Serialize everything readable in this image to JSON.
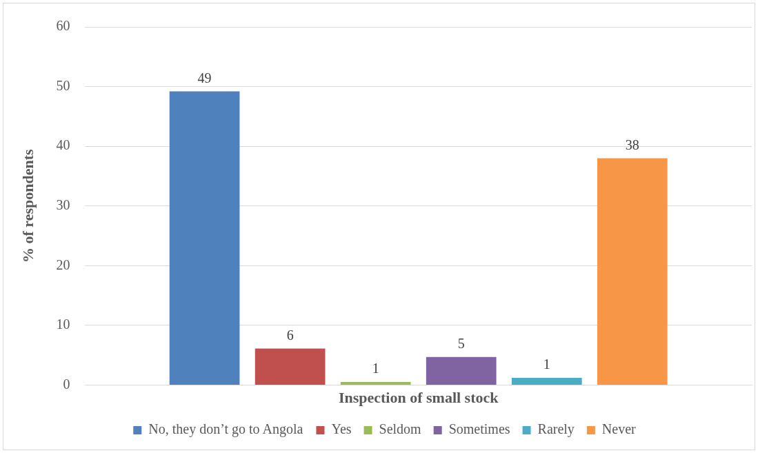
{
  "chart_data": {
    "type": "bar",
    "xlabel": "Inspection of small stock",
    "ylabel": "% of respondents",
    "categories": [
      null
    ],
    "series": [
      {
        "name": "No, they don’t go to Angola",
        "color": "#4f81bd",
        "values": [
          49.2
        ],
        "value_labels": [
          "49"
        ]
      },
      {
        "name": "Yes",
        "color": "#c0504d",
        "values": [
          6.1
        ],
        "value_labels": [
          "6"
        ]
      },
      {
        "name": "Seldom",
        "color": "#9bbb59",
        "values": [
          0.5
        ],
        "value_labels": [
          "1"
        ]
      },
      {
        "name": "Sometimes",
        "color": "#8064a2",
        "values": [
          4.7
        ],
        "value_labels": [
          "5"
        ]
      },
      {
        "name": "Rarely",
        "color": "#4bacc6",
        "values": [
          1.2
        ],
        "value_labels": [
          "1"
        ]
      },
      {
        "name": "Never",
        "color": "#f79646",
        "values": [
          38
        ],
        "value_labels": [
          "38"
        ]
      }
    ],
    "ylim": [
      0,
      60
    ],
    "yticks": [
      0,
      10,
      20,
      30,
      40,
      50,
      60
    ],
    "grid": "y",
    "legend": "bottom"
  }
}
